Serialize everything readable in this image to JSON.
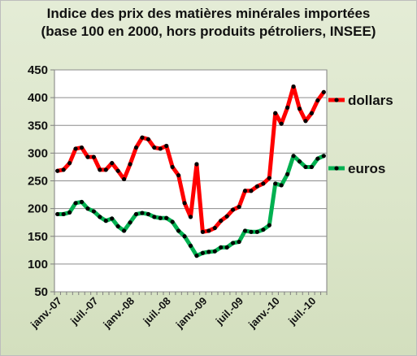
{
  "chart_data": {
    "type": "line",
    "title_line1": "Indice des prix des matières minérales importées",
    "title_line2": "(base 100 en 2000, hors produits pétroliers, INSEE)",
    "xlabel": "",
    "ylabel": "",
    "ylim": [
      50,
      450
    ],
    "yticks": [
      50,
      100,
      150,
      200,
      250,
      300,
      350,
      400,
      450
    ],
    "x_tick_labels": [
      "janv.-07",
      "juil.-07",
      "janv.-08",
      "juil.-08",
      "janv.-09",
      "juil.-09",
      "janv.-10",
      "juil.-10"
    ],
    "grid": "horizontal",
    "legend_placement": "right",
    "x": [
      "2007-01",
      "2007-02",
      "2007-03",
      "2007-04",
      "2007-05",
      "2007-06",
      "2007-07",
      "2007-08",
      "2007-09",
      "2007-10",
      "2007-11",
      "2007-12",
      "2008-01",
      "2008-02",
      "2008-03",
      "2008-04",
      "2008-05",
      "2008-06",
      "2008-07",
      "2008-08",
      "2008-09",
      "2008-10",
      "2008-11",
      "2008-12",
      "2009-01",
      "2009-02",
      "2009-03",
      "2009-04",
      "2009-05",
      "2009-06",
      "2009-07",
      "2009-08",
      "2009-09",
      "2009-10",
      "2009-11",
      "2009-12",
      "2010-01",
      "2010-02",
      "2010-03",
      "2010-04",
      "2010-05",
      "2010-06",
      "2010-07",
      "2010-08",
      "2010-09"
    ],
    "series": [
      {
        "name": "dollars",
        "color": "#ff0000",
        "values": [
          268,
          270,
          282,
          308,
          310,
          293,
          293,
          270,
          270,
          282,
          268,
          253,
          280,
          310,
          328,
          325,
          310,
          308,
          313,
          275,
          260,
          210,
          185,
          280,
          158,
          160,
          165,
          178,
          186,
          198,
          203,
          232,
          232,
          240,
          245,
          255,
          372,
          353,
          382,
          420,
          380,
          358,
          372,
          395,
          410
        ]
      },
      {
        "name": "euros",
        "color": "#00b050",
        "values": [
          190,
          190,
          193,
          210,
          212,
          200,
          195,
          185,
          178,
          182,
          168,
          160,
          175,
          190,
          192,
          190,
          185,
          183,
          183,
          176,
          160,
          150,
          133,
          115,
          120,
          122,
          123,
          130,
          130,
          138,
          140,
          160,
          158,
          158,
          162,
          170,
          245,
          242,
          262,
          295,
          285,
          275,
          275,
          290,
          295
        ]
      }
    ]
  }
}
